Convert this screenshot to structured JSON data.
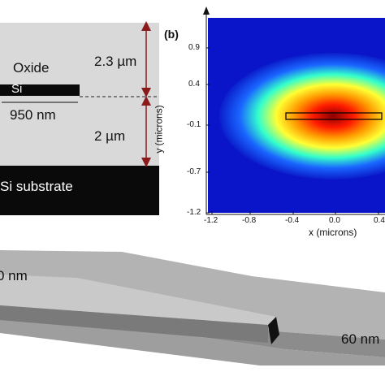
{
  "panel_a": {
    "oxide_label": "Oxide",
    "si_label": "Si",
    "width_label": "950 nm",
    "top_oxide_label": "2.3 µm",
    "bottom_oxide_label": "2 µm",
    "substrate_label": "Si substrate",
    "colors": {
      "oxide": "#d9d9d9",
      "si": "#0a0a0a",
      "substrate": "#0a0a0a",
      "arrow": "#8b1a1a"
    }
  },
  "panel_b": {
    "label": "(b)",
    "xlabel": "x (microns)",
    "ylabel": "y (microns)",
    "x_ticks": [
      "-1.2",
      "-0.8",
      "-0.4",
      "0.0",
      "0.4"
    ],
    "y_ticks": [
      "0.9",
      "0.4",
      "-0.1",
      "-0.7",
      "-1.2"
    ],
    "colormap": "jet"
  },
  "panel_c": {
    "left_label": "0 nm",
    "right_label": "60 nm"
  }
}
